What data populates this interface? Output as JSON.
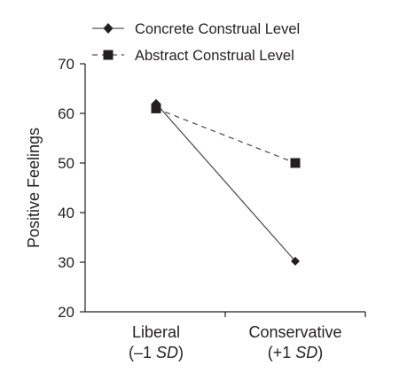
{
  "chart_data": {
    "type": "line",
    "title": "",
    "ylabel": "Positive Feelings",
    "xlabel": "",
    "categories": [
      {
        "name": "Liberal",
        "sub_prefix": "(–1 ",
        "sub_italic": "SD",
        "sub_suffix": ")"
      },
      {
        "name": "Conservative",
        "sub_prefix": "(+1 ",
        "sub_italic": "SD",
        "sub_suffix": ")"
      }
    ],
    "ylim": [
      20,
      70
    ],
    "yticks": [
      20,
      30,
      40,
      50,
      60,
      70
    ],
    "grid": false,
    "legend_position": "top",
    "series": [
      {
        "name": "Concrete Construal Level",
        "marker": "diamond",
        "line_style": "solid",
        "values": [
          62,
          30.2
        ]
      },
      {
        "name": "Abstract Construal Level",
        "marker": "square",
        "line_style": "dashed",
        "values": [
          61,
          50
        ]
      }
    ],
    "colors": {
      "ink": "#231f20",
      "line": "#555555"
    }
  }
}
